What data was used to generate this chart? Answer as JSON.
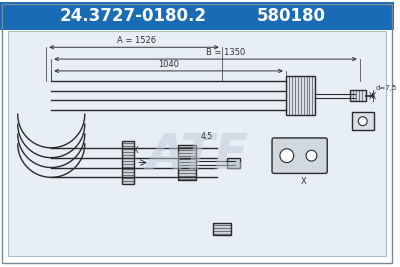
{
  "title1": "24.3727-0180.2",
  "title2": "580180",
  "bg_color": "#ffffff",
  "header_bg": "#1a6bb5",
  "header_text_color": "#ffffff",
  "diagram_bg": "#e8eef5",
  "line_color": "#2a2a2a",
  "dim_color": "#333333",
  "label_A": "A = 1526",
  "label_B": "B = 1350",
  "label_1040": "1040",
  "label_d": "d=7,5",
  "label_X": "X",
  "label_45": "4,5",
  "figsize": [
    4.0,
    2.67
  ],
  "dpi": 100
}
